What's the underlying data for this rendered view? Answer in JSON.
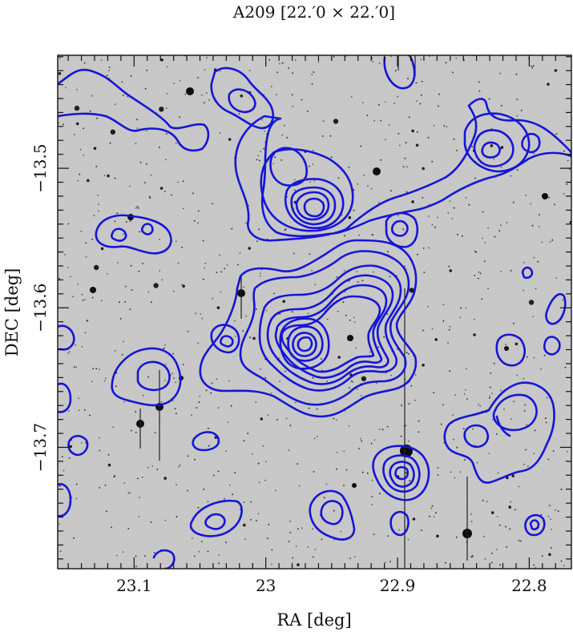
{
  "chart_data": {
    "type": "contour",
    "title": "A209  [22.′0 × 22.′0]",
    "xlabel": "RA [deg]",
    "ylabel": "DEC [deg]",
    "xlim": [
      23.158,
      22.768
    ],
    "ylim": [
      -13.787,
      -13.419
    ],
    "x_ticks": [
      {
        "value": 23.1,
        "label": "23.1"
      },
      {
        "value": 23.0,
        "label": "23"
      },
      {
        "value": 22.9,
        "label": "22.9"
      },
      {
        "value": 22.8,
        "label": "22.8"
      }
    ],
    "y_ticks": [
      {
        "value": -13.5,
        "label": "−13.5"
      },
      {
        "value": -13.6,
        "label": "−13.6"
      },
      {
        "value": -13.7,
        "label": "−13.7"
      }
    ],
    "contour_color": "#1515d8",
    "background": "greyscale optical image with stars and galaxies",
    "density_peaks": [
      {
        "ra": 22.965,
        "dec": -13.61,
        "levels": 7
      },
      {
        "ra": 22.975,
        "dec": -13.525,
        "levels": 5
      },
      {
        "ra": 22.925,
        "dec": -13.567,
        "levels": 6
      },
      {
        "ra": 22.895,
        "dec": -13.718,
        "levels": 4
      },
      {
        "ra": 22.818,
        "dec": -13.487,
        "levels": 3
      },
      {
        "ra": 22.82,
        "dec": -13.686,
        "levels": 2
      },
      {
        "ra": 23.085,
        "dec": -13.632,
        "levels": 2
      },
      {
        "ra": 23.111,
        "dec": -13.545,
        "levels": 2
      },
      {
        "ra": 22.944,
        "dec": -13.755,
        "levels": 2
      },
      {
        "ra": 23.035,
        "dec": -13.755,
        "levels": 2
      }
    ]
  }
}
